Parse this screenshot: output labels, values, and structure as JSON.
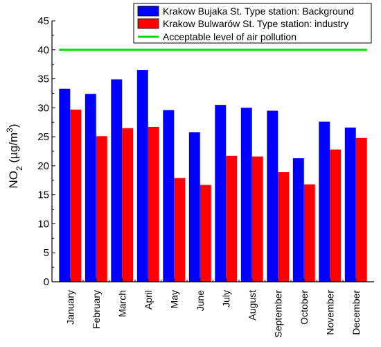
{
  "chart_data": {
    "type": "bar",
    "title": "",
    "xlabel": "",
    "ylabel": {
      "base": "NO",
      "sub": "2",
      "unit_open": " (µg/m",
      "sup": "3",
      "unit_close": ")"
    },
    "ylim": [
      0,
      45
    ],
    "yticks": [
      0,
      5,
      10,
      15,
      20,
      25,
      30,
      35,
      40,
      45
    ],
    "grid": false,
    "legend_position": "top-right",
    "categories": [
      "January",
      "February",
      "March",
      "April",
      "May",
      "June",
      "July",
      "August",
      "September",
      "October",
      "November",
      "December"
    ],
    "series": [
      {
        "name": "Krakow Bujaka St. Type station: Background",
        "color": "#0000ff",
        "values": [
          33.3,
          32.4,
          34.9,
          36.5,
          29.6,
          25.8,
          30.5,
          30.0,
          29.5,
          21.3,
          27.6,
          26.6
        ]
      },
      {
        "name": "Krakow Bulwarów St.  Type station: industry",
        "color": "#ff0000",
        "values": [
          29.7,
          25.1,
          26.5,
          26.7,
          17.9,
          16.7,
          21.7,
          21.6,
          18.9,
          16.8,
          22.8,
          24.8
        ]
      }
    ],
    "reference_line": {
      "name": "Acceptable level of air pollution",
      "value": 40,
      "color": "#00e000"
    }
  }
}
